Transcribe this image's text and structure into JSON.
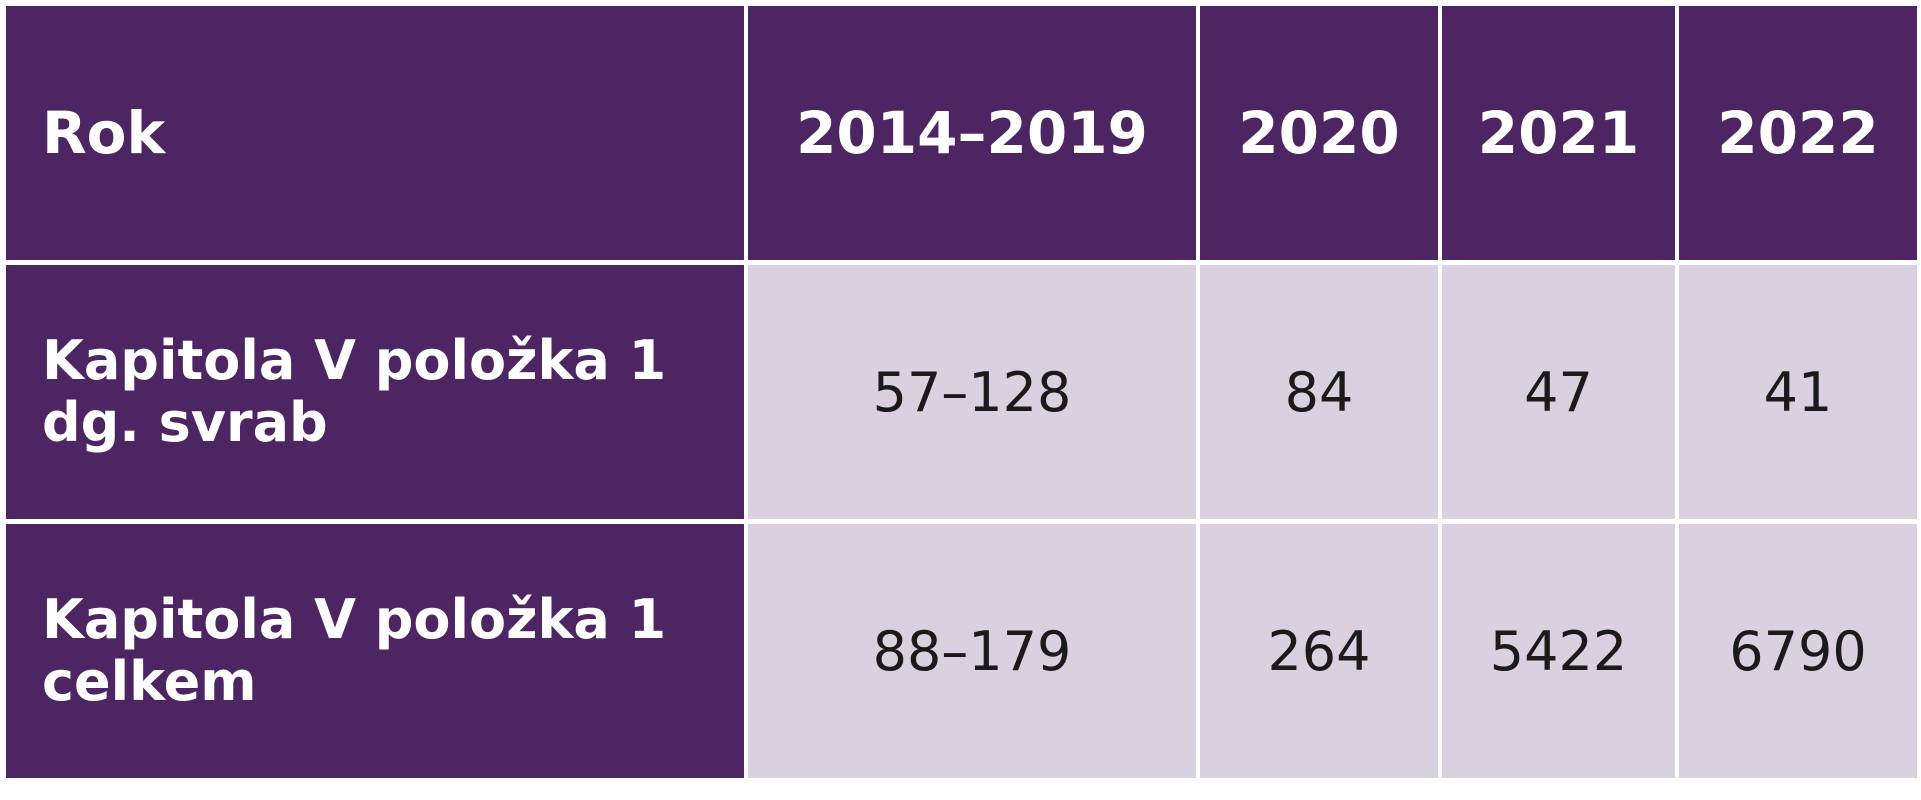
{
  "table": {
    "header": [
      "Rok",
      "2014–2019",
      "2020",
      "2021",
      "2022"
    ],
    "rows": [
      [
        "Kapitola V položka 1 dg. svrab",
        "57–128",
        84,
        47,
        41
      ],
      [
        "Kapitola V položka 1 celkem",
        "88–179",
        264,
        5422,
        6790
      ]
    ]
  }
}
